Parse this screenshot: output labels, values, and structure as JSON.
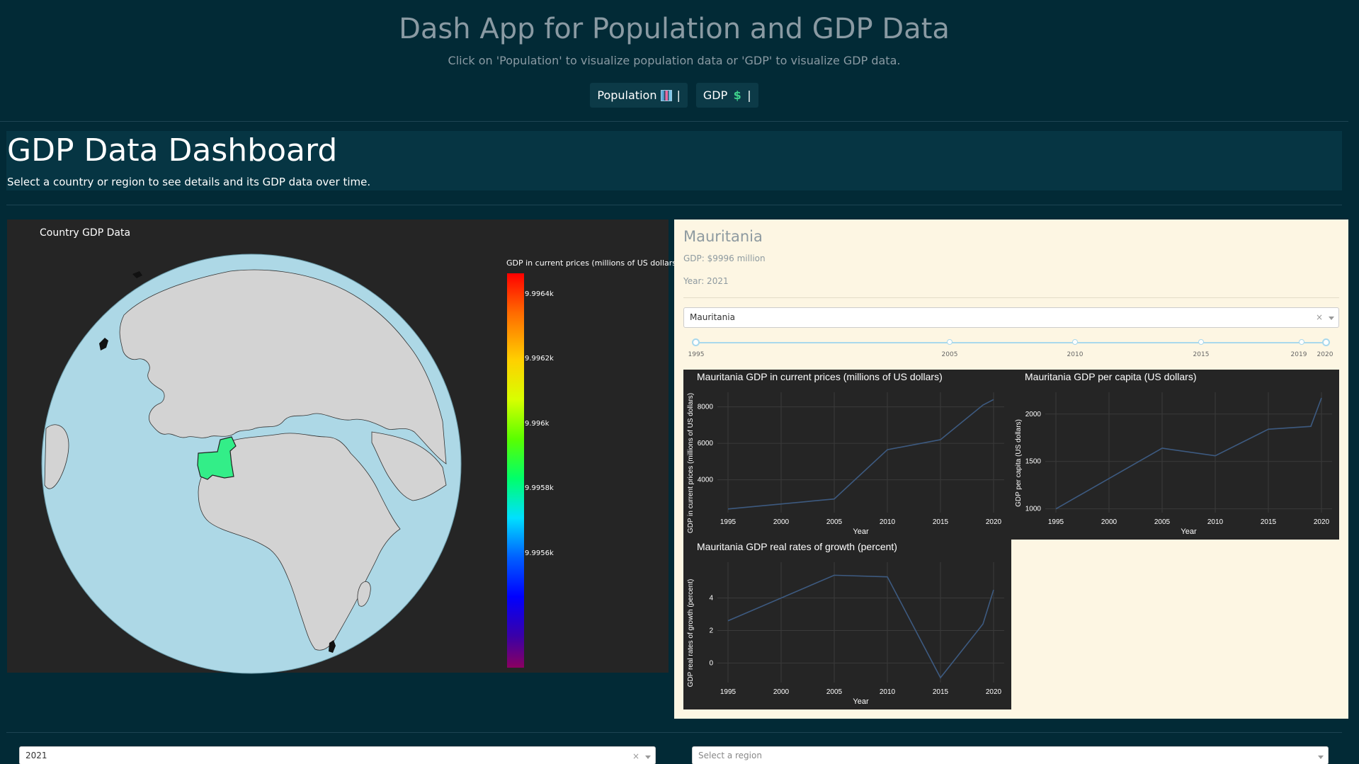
{
  "app": {
    "title": "Dash App for Population and GDP Data",
    "subtitle": "Click on 'Population' to visualize population data or 'GDP' to visualize GDP data.",
    "nav": [
      {
        "label": "Population",
        "icon": "bar-chart-icon",
        "separator": "|"
      },
      {
        "label": "GDP",
        "icon": "dollar-icon",
        "separator": "|"
      }
    ]
  },
  "dashboard": {
    "title": "GDP Data Dashboard",
    "subtitle": "Select a country or region to see details and its GDP data over time."
  },
  "map": {
    "title": "Country GDP Data",
    "colorbar_title": "GDP in current prices (millions of US dollars)",
    "colorbar_ticks": [
      "9.9964k",
      "9.9962k",
      "9.996k",
      "9.9958k",
      "9.9956k"
    ],
    "ocean_color": "#add8e6",
    "land_color": "#d3d3d3",
    "highlight_color": "#33ee88"
  },
  "detail": {
    "country": "Mauritania",
    "gdp_text": "GDP: $9996 million",
    "year_text": "Year: 2021",
    "select_value": "Mauritania",
    "select_clear": "×",
    "slider_marks": [
      "1995",
      "2005",
      "2010",
      "2015",
      "2019",
      "2020"
    ]
  },
  "filters": {
    "year_value": "2021",
    "year_clear": "×",
    "region_placeholder": "Select a region"
  },
  "chart_data": [
    {
      "type": "line",
      "title": "Mauritania GDP in current prices (millions of US dollars)",
      "xlabel": "Year",
      "ylabel": "GDP in current prices (millions of US dollars)",
      "x": [
        1995,
        2005,
        2010,
        2015,
        2019,
        2020
      ],
      "values": [
        2400,
        2950,
        5650,
        6200,
        8100,
        8400
      ],
      "xticks": [
        1995,
        2000,
        2005,
        2010,
        2015,
        2020
      ],
      "yticks": [
        4000,
        6000,
        8000
      ],
      "xlim": [
        1994,
        2021
      ],
      "ylim": [
        2200,
        8800
      ]
    },
    {
      "type": "line",
      "title": "Mauritania GDP per capita (US dollars)",
      "xlabel": "Year",
      "ylabel": "GDP per capita (US dollars)",
      "x": [
        1995,
        2005,
        2010,
        2015,
        2019,
        2020
      ],
      "values": [
        1000,
        1640,
        1560,
        1840,
        1870,
        2170
      ],
      "xticks": [
        1995,
        2000,
        2005,
        2010,
        2015,
        2020
      ],
      "yticks": [
        1000,
        1500,
        2000
      ],
      "xlim": [
        1994,
        2021
      ],
      "ylim": [
        960,
        2230
      ]
    },
    {
      "type": "line",
      "title": "Mauritania GDP real rates of growth (percent)",
      "xlabel": "Year",
      "ylabel": "GDP real rates of growth (percent)",
      "x": [
        1995,
        2005,
        2010,
        2015,
        2019,
        2020
      ],
      "values": [
        2.6,
        5.4,
        5.3,
        -0.9,
        2.4,
        4.5
      ],
      "xticks": [
        1995,
        2000,
        2005,
        2010,
        2015,
        2020
      ],
      "yticks": [
        0,
        2,
        4
      ],
      "xlim": [
        1994,
        2021
      ],
      "ylim": [
        -1.2,
        6.2
      ]
    }
  ]
}
